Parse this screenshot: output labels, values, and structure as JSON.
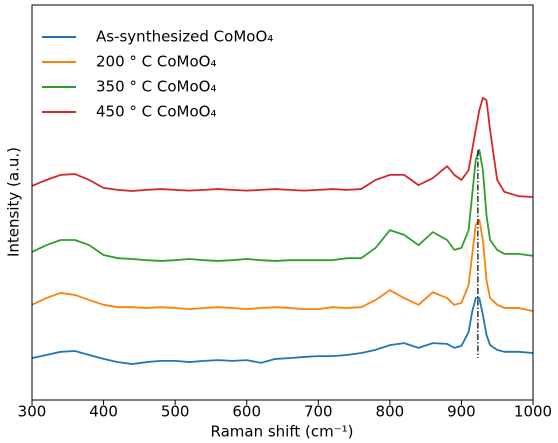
{
  "chart_data": {
    "type": "line",
    "xlabel": "Raman shift (cm⁻¹)",
    "ylabel": "Intensity (a.u.)",
    "x": [
      300,
      320,
      340,
      360,
      380,
      400,
      420,
      440,
      460,
      480,
      500,
      520,
      540,
      560,
      580,
      600,
      620,
      640,
      660,
      680,
      700,
      720,
      740,
      760,
      780,
      800,
      820,
      840,
      860,
      880,
      890,
      900,
      910,
      915,
      920,
      925,
      930,
      935,
      940,
      950,
      960,
      980,
      1000
    ],
    "series": [
      {
        "name": "As-synthesized CoMoO₄",
        "color": "#1f77b4",
        "values": [
          10.6,
          11.4,
          12.2,
          12.4,
          11.4,
          10.4,
          9.6,
          9.1,
          9.6,
          9.9,
          9.9,
          9.6,
          9.9,
          10.1,
          9.9,
          10.1,
          9.4,
          10.4,
          10.6,
          10.9,
          11.1,
          11.1,
          11.4,
          11.9,
          12.7,
          13.9,
          14.4,
          13.2,
          14.4,
          14.2,
          13.2,
          13.7,
          17.2,
          22.3,
          25.8,
          25.8,
          21.5,
          16.5,
          13.9,
          12.7,
          12.2,
          12.2,
          11.9
        ]
      },
      {
        "name": "200 ° C CoMoO₄",
        "color": "#ff7f0e",
        "values": [
          24.1,
          25.8,
          27.1,
          26.6,
          25.3,
          24.1,
          23.5,
          23.5,
          23.3,
          23.5,
          23.3,
          23.0,
          23.3,
          23.5,
          23.3,
          23.0,
          23.3,
          23.5,
          23.3,
          23.0,
          23.0,
          23.5,
          23.3,
          23.5,
          25.3,
          27.8,
          25.8,
          24.1,
          27.3,
          25.8,
          24.1,
          24.6,
          29.1,
          36.7,
          44.3,
          45.6,
          40.5,
          30.4,
          25.8,
          24.1,
          23.3,
          23.3,
          22.5
        ]
      },
      {
        "name": "350 ° C CoMoO₄",
        "color": "#2ca02c",
        "values": [
          37.5,
          39.2,
          40.5,
          40.5,
          39.2,
          36.7,
          35.9,
          35.7,
          35.4,
          35.2,
          35.4,
          35.7,
          35.4,
          35.2,
          35.4,
          35.7,
          35.4,
          35.2,
          35.4,
          35.4,
          35.4,
          35.4,
          35.9,
          35.9,
          38.5,
          43.0,
          41.8,
          39.2,
          42.5,
          40.5,
          38.0,
          38.5,
          43.0,
          51.9,
          60.8,
          63.3,
          58.2,
          46.8,
          40.5,
          38.0,
          37.0,
          37.0,
          36.5
        ]
      },
      {
        "name": "450 ° C CoMoO₄",
        "color": "#d62728",
        "values": [
          54.2,
          55.7,
          57.0,
          57.2,
          55.7,
          53.7,
          53.2,
          52.9,
          53.2,
          53.4,
          53.2,
          53.0,
          53.2,
          53.4,
          53.2,
          53.0,
          53.2,
          53.4,
          53.2,
          53.0,
          53.2,
          53.4,
          53.2,
          53.4,
          55.7,
          57.0,
          57.0,
          54.4,
          56.2,
          59.2,
          57.0,
          55.7,
          58.2,
          63.3,
          68.4,
          73.4,
          76.5,
          75.9,
          68.4,
          55.7,
          52.7,
          51.6,
          51.4
        ]
      }
    ],
    "vline": 923,
    "xlim": [
      300,
      1000
    ],
    "xticks": [
      300,
      400,
      500,
      600,
      700,
      800,
      900,
      1000
    ],
    "ylim": [
      0,
      100
    ],
    "legend": "upper left"
  }
}
